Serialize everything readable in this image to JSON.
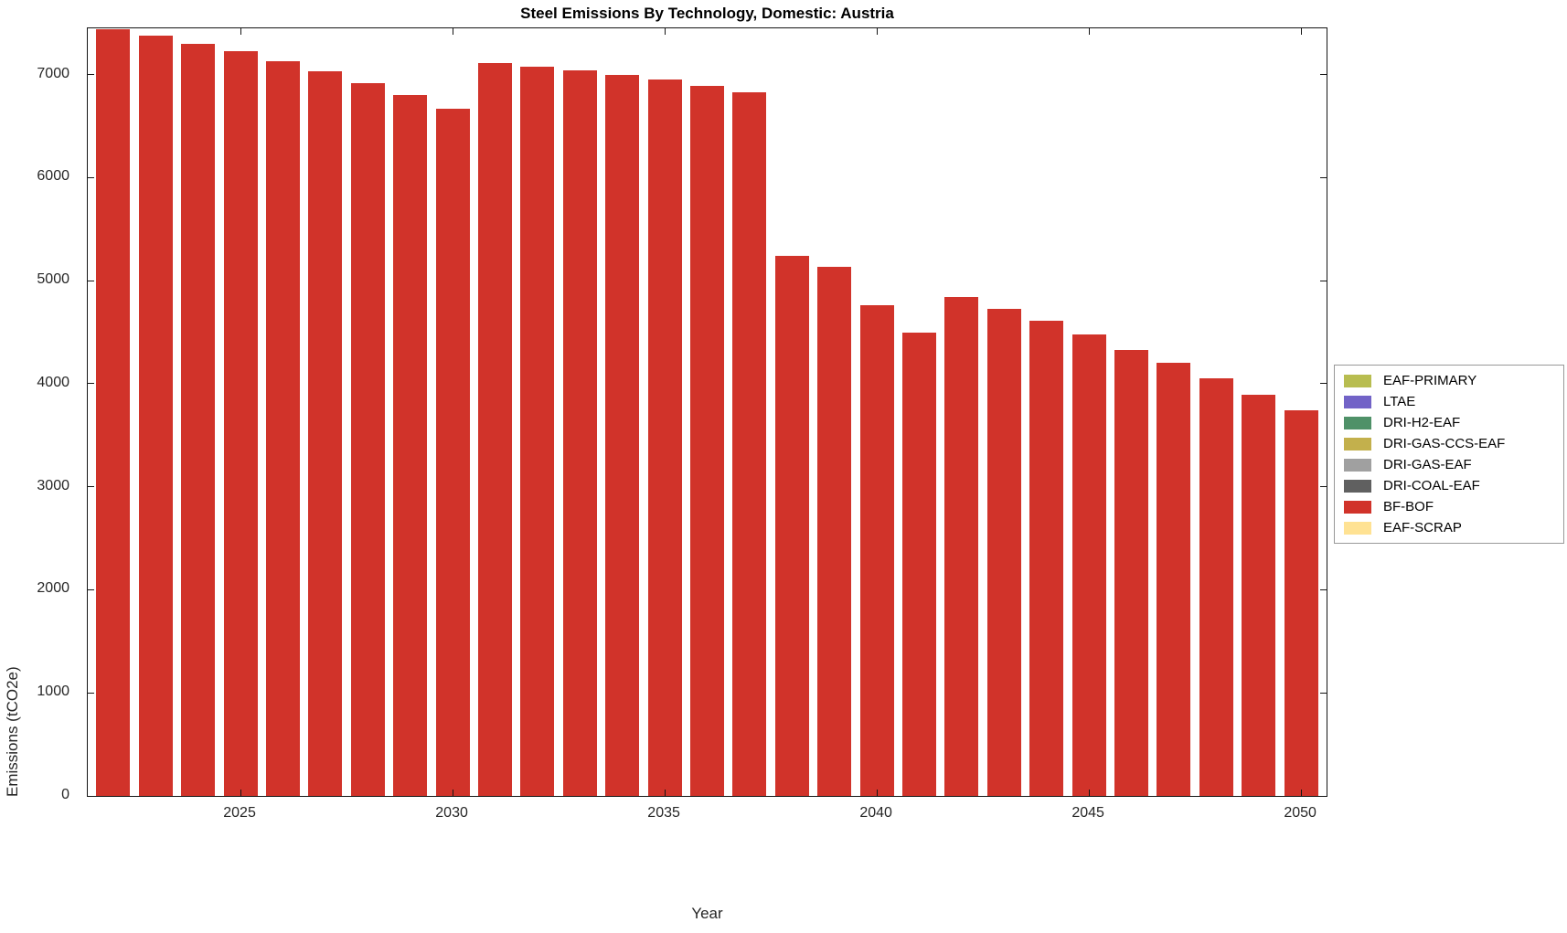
{
  "figure": {
    "title": "Steel Emissions By Technology, Domestic: Austria",
    "xlabel": "Year",
    "ylabel": "Emissions (tCO2e)"
  },
  "chart_data": {
    "type": "bar",
    "title": "Steel Emissions By Technology, Domestic: Austria",
    "xlabel": "Year",
    "ylabel": "Emissions (tCO2e)",
    "grid": false,
    "legend_position": "right-outside",
    "xlim": [
      2021.4,
      2050.6
    ],
    "ylim": [
      0,
      7450
    ],
    "xticks": [
      2025,
      2030,
      2035,
      2040,
      2045,
      2050
    ],
    "yticks": [
      0,
      1000,
      2000,
      3000,
      4000,
      5000,
      6000,
      7000
    ],
    "categories": [
      2022,
      2023,
      2024,
      2025,
      2026,
      2027,
      2028,
      2029,
      2030,
      2031,
      2032,
      2033,
      2034,
      2035,
      2036,
      2037,
      2038,
      2039,
      2040,
      2041,
      2042,
      2043,
      2044,
      2045,
      2046,
      2047,
      2048,
      2049,
      2050
    ],
    "series": [
      {
        "name": "BF-BOF",
        "color": "#d1332a",
        "values": [
          7440,
          7380,
          7300,
          7230,
          7130,
          7030,
          6920,
          6800,
          6670,
          7110,
          7080,
          7040,
          7000,
          6950,
          6890,
          6830,
          5240,
          5140,
          4760,
          4500,
          4840,
          4730,
          4610,
          4480,
          4330,
          4200,
          4050,
          3890,
          3740
        ]
      }
    ],
    "legend": [
      {
        "label": "EAF-PRIMARY",
        "color": "#b8bd50"
      },
      {
        "label": "LTAE",
        "color": "#7263c7"
      },
      {
        "label": "DRI-H2-EAF",
        "color": "#4f9168"
      },
      {
        "label": "DRI-GAS-CCS-EAF",
        "color": "#c3b04c"
      },
      {
        "label": "DRI-GAS-EAF",
        "color": "#a0a0a0"
      },
      {
        "label": "DRI-COAL-EAF",
        "color": "#606060"
      },
      {
        "label": "BF-BOF",
        "color": "#d1332a"
      },
      {
        "label": "EAF-SCRAP",
        "color": "#ffe293"
      }
    ]
  }
}
